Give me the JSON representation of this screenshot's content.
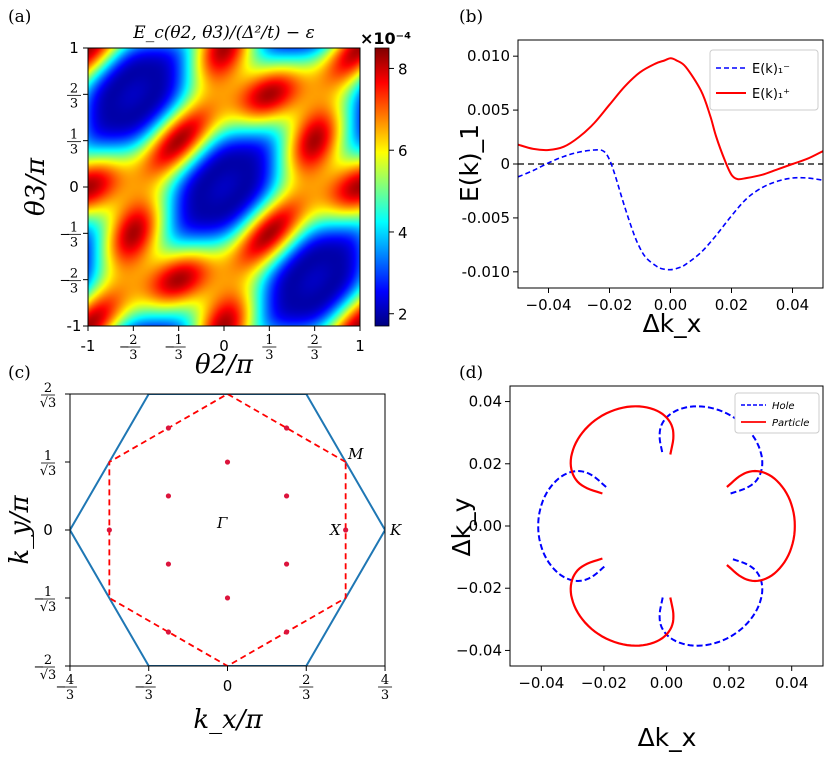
{
  "chart_data": [
    {
      "type": "heatmap",
      "panel_label": "(a)",
      "title": "E_c(θ2, θ3)/(Δ²/t) − ε",
      "xlabel": "θ2/π",
      "ylabel": "θ3/π",
      "xlim": [
        -1,
        1
      ],
      "ylim": [
        -1,
        1
      ],
      "x_ticks": [
        "-1",
        "−2/3",
        "−1/3",
        "0",
        "1/3",
        "2/3",
        "1"
      ],
      "y_ticks": [
        "-1",
        "−2/3",
        "−1/3",
        "0",
        "1/3",
        "2/3",
        "1"
      ],
      "colorbar": {
        "scale_label": "×10⁻⁴",
        "ticks": [
          2,
          4,
          6,
          8
        ],
        "range": [
          1.7,
          8.5
        ],
        "colormap": "jet"
      },
      "minima_at": [
        [
          0,
          0
        ],
        [
          -1,
          -1
        ],
        [
          1,
          1
        ],
        [
          -1,
          1
        ],
        [
          1,
          -1
        ],
        [
          0.33,
          0.67
        ],
        [
          -0.33,
          -0.67
        ],
        [
          0.67,
          0.33
        ],
        [
          -0.67,
          -0.33
        ]
      ],
      "maxima_at": [
        [
          -0.67,
          0.67
        ],
        [
          0.67,
          -0.67
        ],
        [
          -0.33,
          0.33
        ],
        [
          0.33,
          -0.33
        ],
        [
          -0.67,
          -0.33
        ],
        [
          0.33,
          0.67
        ],
        [
          -0.33,
          -0.67
        ],
        [
          0.67,
          0.33
        ]
      ]
    },
    {
      "type": "line",
      "panel_label": "(b)",
      "xlabel": "Δk_x",
      "ylabel": "E(k)_1",
      "xlim": [
        -0.05,
        0.05
      ],
      "ylim": [
        -0.0115,
        0.0115
      ],
      "x_ticks": [
        "−0.04",
        "−0.02",
        "0.00",
        "0.02",
        "0.04"
      ],
      "y_ticks": [
        "-0.010",
        "-0.005",
        "0",
        "0.005",
        "0.010"
      ],
      "legend_position": "top-right",
      "series": [
        {
          "name": "E(k)₁⁻",
          "color": "#0000ff",
          "dash": "dashed",
          "x": [
            -0.05,
            -0.045,
            -0.04,
            -0.035,
            -0.03,
            -0.025,
            -0.022,
            -0.02,
            -0.018,
            -0.015,
            -0.012,
            -0.01,
            -0.008,
            -0.005,
            -0.003,
            0,
            0.003,
            0.005,
            0.01,
            0.015,
            0.02,
            0.025,
            0.03,
            0.035,
            0.04,
            0.045,
            0.05
          ],
          "y": [
            -0.0012,
            -0.0006,
            0.0001,
            0.0007,
            0.0011,
            0.0013,
            0.0012,
            0.0004,
            -0.0012,
            -0.004,
            -0.0065,
            -0.0078,
            -0.0087,
            -0.0094,
            -0.0097,
            -0.0098,
            -0.0096,
            -0.0093,
            -0.0082,
            -0.0066,
            -0.0048,
            -0.0032,
            -0.0022,
            -0.0016,
            -0.0013,
            -0.0013,
            -0.0015
          ]
        },
        {
          "name": "E(k)₁⁺",
          "color": "#ff0000",
          "dash": "solid",
          "x": [
            -0.05,
            -0.045,
            -0.04,
            -0.035,
            -0.03,
            -0.025,
            -0.02,
            -0.015,
            -0.01,
            -0.005,
            -0.002,
            0,
            0.002,
            0.005,
            0.01,
            0.013,
            0.015,
            0.018,
            0.02,
            0.022,
            0.025,
            0.03,
            0.035,
            0.04,
            0.045,
            0.05
          ],
          "y": [
            0.0018,
            0.0014,
            0.0013,
            0.0016,
            0.0025,
            0.0038,
            0.0055,
            0.0072,
            0.0085,
            0.0093,
            0.0096,
            0.0098,
            0.0096,
            0.009,
            0.0068,
            0.0045,
            0.0025,
            0.0002,
            -0.001,
            -0.0014,
            -0.0013,
            -0.001,
            -0.0005,
            0.0,
            0.0005,
            0.0012
          ]
        }
      ]
    },
    {
      "type": "scatter",
      "panel_label": "(c)",
      "xlabel": "k_x/π",
      "ylabel": "k_y/π",
      "xlim": [
        -1.333,
        1.333
      ],
      "ylim": [
        -1.1547,
        1.1547
      ],
      "x_ticks": [
        "−4/3",
        "−2/3",
        "0",
        "2/3",
        "4/3"
      ],
      "y_ticks": [
        "−2/√3",
        "−1/√3",
        "0",
        "1/√3",
        "2/√3"
      ],
      "point_labels": [
        "Γ",
        "M",
        "X",
        "K"
      ],
      "outer_hexagon_color": "#1f77b4",
      "inner_hexagon_color": "#ff0000",
      "points_color": "#dc143c",
      "points": [
        [
          0,
          0.577
        ],
        [
          0,
          -0.577
        ],
        [
          -0.5,
          0.289
        ],
        [
          0.5,
          0.289
        ],
        [
          -0.5,
          -0.289
        ],
        [
          0.5,
          -0.289
        ],
        [
          -1.0,
          0
        ],
        [
          1.0,
          0
        ],
        [
          -0.5,
          0.866
        ],
        [
          0.5,
          0.866
        ],
        [
          -0.5,
          -0.866
        ],
        [
          0.5,
          -0.866
        ]
      ]
    },
    {
      "type": "line",
      "panel_label": "(d)",
      "xlabel": "Δk_x",
      "ylabel": "Δk_y",
      "xlim": [
        -0.05,
        0.05
      ],
      "ylim": [
        -0.045,
        0.045
      ],
      "x_ticks": [
        "−0.04",
        "−0.02",
        "0.00",
        "0.02",
        "0.04"
      ],
      "y_ticks": [
        "−0.04",
        "−0.02",
        "0.00",
        "0.02",
        "0.04"
      ],
      "legend_position": "top-right",
      "series": [
        {
          "name": "Hole",
          "color": "#0000ff",
          "dash": "dashed",
          "petal_tip_angles_deg": [
            60,
            180,
            300
          ],
          "tip_radius": 0.041,
          "base_radius": 0.023
        },
        {
          "name": "Particle",
          "color": "#ff0000",
          "dash": "solid",
          "petal_tip_angles_deg": [
            0,
            120,
            240
          ],
          "tip_radius": 0.041,
          "base_radius": 0.023
        }
      ]
    }
  ]
}
